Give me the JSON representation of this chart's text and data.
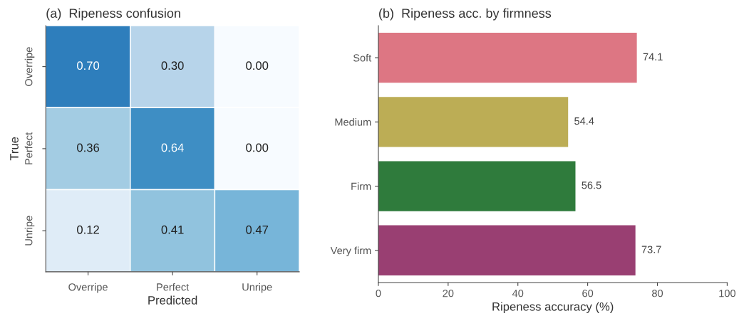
{
  "chart_data": [
    {
      "type": "heatmap",
      "title": "(a)  Ripeness confusion",
      "xlabel": "Predicted",
      "ylabel": "True",
      "categories": [
        "Overripe",
        "Perfect",
        "Unripe"
      ],
      "y_categories": [
        "Overripe",
        "Perfect",
        "Unripe"
      ],
      "cells": [
        [
          0.7,
          0.3,
          0.0
        ],
        [
          0.36,
          0.64,
          0.0
        ],
        [
          0.12,
          0.41,
          0.47
        ]
      ],
      "cell_labels": [
        [
          "0.70",
          "0.30",
          "0.00"
        ],
        [
          "0.36",
          "0.64",
          "0.00"
        ],
        [
          "0.12",
          "0.41",
          "0.47"
        ]
      ]
    },
    {
      "type": "bar",
      "orientation": "horizontal",
      "title": "(b)  Ripeness acc. by firmness",
      "xlabel": "Ripeness accuracy (%)",
      "categories": [
        "Soft",
        "Medium",
        "Firm",
        "Very firm"
      ],
      "values": [
        74.1,
        54.4,
        56.5,
        73.7
      ],
      "colors": [
        "#dd7683",
        "#bcad55",
        "#2f7b3c",
        "#993f72"
      ],
      "data_labels": true,
      "xlim": [
        0,
        100
      ],
      "xticks": [
        0,
        20,
        40,
        60,
        80,
        100
      ],
      "grid": false
    }
  ]
}
